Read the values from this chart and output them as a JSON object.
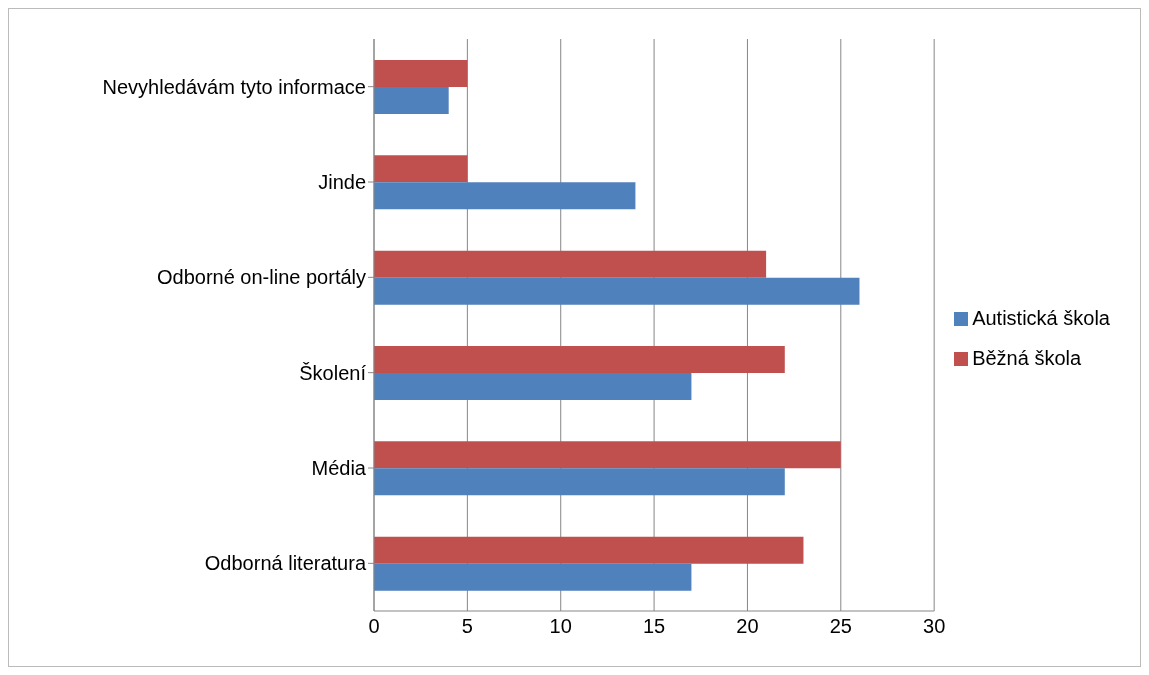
{
  "chart_data": {
    "type": "bar",
    "orientation": "horizontal",
    "categories": [
      "Nevyhledávám tyto informace",
      "Jinde",
      "Odborné on-line portály",
      "Školení",
      "Média",
      "Odborná literatura"
    ],
    "series": [
      {
        "name": "Běžná škola",
        "color": "#c0504d",
        "values": [
          5,
          5,
          21,
          22,
          25,
          23
        ]
      },
      {
        "name": "Autistická škola",
        "color": "#4f81bd",
        "values": [
          4,
          14,
          26,
          17,
          22,
          17
        ]
      }
    ],
    "xlim": [
      0,
      30
    ],
    "xticks": [
      0,
      5,
      10,
      15,
      20,
      25,
      30
    ],
    "grid": "x",
    "legend": "right"
  }
}
